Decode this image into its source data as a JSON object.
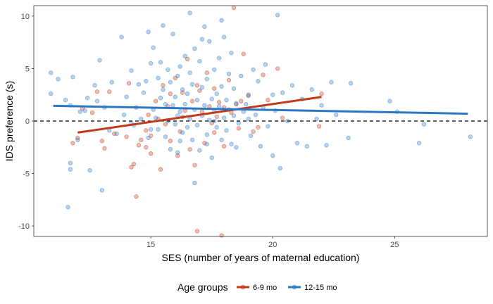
{
  "chart_data": {
    "type": "scatter",
    "title": "",
    "xlabel": "SES (number of years of maternal education)",
    "ylabel": "IDS preference (s)",
    "xlim": [
      10.2,
      28.8
    ],
    "ylim": [
      -11,
      11
    ],
    "x_ticks": [
      15,
      20,
      25
    ],
    "y_ticks": [
      -10,
      -5,
      0,
      5,
      10
    ],
    "x_tick_labels": [
      "15",
      "20",
      "25"
    ],
    "y_tick_labels": [
      "-10",
      "-5",
      "0",
      "5",
      "10"
    ],
    "grid": false,
    "reference_line": {
      "y": 0,
      "style": "dashed",
      "color": "#000000"
    },
    "legend": {
      "title": "Age groups",
      "placement": "bottom"
    },
    "series": [
      {
        "name": "6-9 mo",
        "color": "#c0391b",
        "regression_line": [
          [
            12.0,
            -1.1
          ],
          [
            22.0,
            2.3
          ]
        ],
        "points": [
          [
            11.8,
            -2.1
          ],
          [
            12.0,
            -1.6
          ],
          [
            12.2,
            1.2
          ],
          [
            12.6,
            0.8
          ],
          [
            13.0,
            -1.9
          ],
          [
            13.1,
            -2.6
          ],
          [
            13.3,
            2.8
          ],
          [
            13.5,
            -1.2
          ],
          [
            14.0,
            -1.5
          ],
          [
            14.1,
            3.6
          ],
          [
            14.2,
            -4.4
          ],
          [
            14.3,
            -4.1
          ],
          [
            14.4,
            -7.2
          ],
          [
            14.6,
            -1.8
          ],
          [
            14.8,
            -2.5
          ],
          [
            14.8,
            -0.9
          ],
          [
            15.0,
            -3.1
          ],
          [
            15.0,
            -1.4
          ],
          [
            15.2,
            1.9
          ],
          [
            15.4,
            -4.6
          ],
          [
            15.5,
            3.4
          ],
          [
            15.6,
            -0.3
          ],
          [
            15.7,
            1.4
          ],
          [
            15.8,
            2.6
          ],
          [
            15.8,
            -1.9
          ],
          [
            16.0,
            4.1
          ],
          [
            16.1,
            -3.3
          ],
          [
            16.2,
            -1.0
          ],
          [
            16.3,
            2.7
          ],
          [
            16.3,
            0.4
          ],
          [
            16.5,
            5.9
          ],
          [
            16.6,
            -2.7
          ],
          [
            16.7,
            1.9
          ],
          [
            16.8,
            -4.2
          ],
          [
            16.9,
            -10.5
          ],
          [
            17.0,
            2.9
          ],
          [
            17.1,
            0.9
          ],
          [
            17.2,
            -2.1
          ],
          [
            17.3,
            4.6
          ],
          [
            17.4,
            1.4
          ],
          [
            17.6,
            -1.1
          ],
          [
            17.6,
            3.1
          ],
          [
            17.7,
            0.4
          ],
          [
            17.8,
            1.8
          ],
          [
            17.9,
            -10.9
          ],
          [
            18.0,
            -2.4
          ],
          [
            18.0,
            1.3
          ],
          [
            18.2,
            3.9
          ],
          [
            18.3,
            0.8
          ],
          [
            18.4,
            10.8
          ],
          [
            18.5,
            1.6
          ],
          [
            18.6,
            -0.7
          ],
          [
            18.8,
            6.4
          ],
          [
            19.0,
            2.5
          ],
          [
            19.2,
            -1.0
          ],
          [
            19.6,
            4.4
          ],
          [
            19.8,
            2.0
          ],
          [
            20.2,
            5.0
          ],
          [
            20.4,
            0.3
          ],
          [
            21.9,
            -0.5
          ],
          [
            22.0,
            2.6
          ],
          [
            12.8,
            2.8
          ],
          [
            14.9,
            0.6
          ],
          [
            16.4,
            1.0
          ],
          [
            17.5,
            -0.2
          ],
          [
            18.7,
            1.9
          ],
          [
            16.9,
            3.4
          ],
          [
            15.3,
            0.2
          ],
          [
            19.4,
            -0.6
          ],
          [
            14.5,
            -2.3
          ]
        ]
      },
      {
        "name": "12-15 mo",
        "color": "#2a78c4",
        "regression_line": [
          [
            11.0,
            1.45
          ],
          [
            28.0,
            0.7
          ]
        ],
        "points": [
          [
            10.9,
            2.6
          ],
          [
            10.9,
            4.6
          ],
          [
            11.2,
            4.0
          ],
          [
            11.5,
            2.0
          ],
          [
            11.6,
            -8.2
          ],
          [
            11.7,
            -4.0
          ],
          [
            11.7,
            -4.6
          ],
          [
            11.8,
            4.2
          ],
          [
            12.0,
            -1.8
          ],
          [
            12.3,
            1.0
          ],
          [
            12.4,
            2.2
          ],
          [
            12.5,
            -4.7
          ],
          [
            12.7,
            3.4
          ],
          [
            12.8,
            1.9
          ],
          [
            12.9,
            5.8
          ],
          [
            13.0,
            -6.6
          ],
          [
            13.1,
            1.3
          ],
          [
            13.4,
            3.7
          ],
          [
            13.6,
            -1.2
          ],
          [
            13.8,
            8.0
          ],
          [
            14.0,
            2.3
          ],
          [
            14.2,
            4.8
          ],
          [
            14.3,
            -0.4
          ],
          [
            14.4,
            1.3
          ],
          [
            14.6,
            0.2
          ],
          [
            14.7,
            2.7
          ],
          [
            14.8,
            3.8
          ],
          [
            14.9,
            -1.6
          ],
          [
            14.9,
            8.5
          ],
          [
            15.0,
            5.5
          ],
          [
            15.1,
            7.0
          ],
          [
            15.1,
            1.1
          ],
          [
            15.2,
            0.3
          ],
          [
            15.3,
            4.1
          ],
          [
            15.3,
            -0.8
          ],
          [
            15.4,
            2.2
          ],
          [
            15.5,
            9.1
          ],
          [
            15.5,
            3.0
          ],
          [
            15.6,
            -1.5
          ],
          [
            15.6,
            1.6
          ],
          [
            15.7,
            4.9
          ],
          [
            15.7,
            0.0
          ],
          [
            15.8,
            -2.7
          ],
          [
            15.8,
            3.7
          ],
          [
            15.9,
            8.3
          ],
          [
            15.9,
            1.5
          ],
          [
            16.0,
            -0.3
          ],
          [
            16.0,
            2.3
          ],
          [
            16.1,
            4.3
          ],
          [
            16.1,
            -3.0
          ],
          [
            16.2,
            0.9
          ],
          [
            16.2,
            5.2
          ],
          [
            16.3,
            3.0
          ],
          [
            16.3,
            -1.1
          ],
          [
            16.4,
            1.6
          ],
          [
            16.4,
            6.2
          ],
          [
            16.5,
            -0.6
          ],
          [
            16.5,
            2.6
          ],
          [
            16.6,
            4.6
          ],
          [
            16.6,
            0.2
          ],
          [
            16.7,
            -1.8
          ],
          [
            16.7,
            3.5
          ],
          [
            16.8,
            6.9
          ],
          [
            16.8,
            1.1
          ],
          [
            16.9,
            -0.4
          ],
          [
            16.9,
            2.0
          ],
          [
            17.0,
            5.7
          ],
          [
            17.0,
            -2.8
          ],
          [
            17.1,
            0.5
          ],
          [
            17.1,
            3.2
          ],
          [
            17.2,
            9.0
          ],
          [
            17.2,
            1.5
          ],
          [
            17.3,
            -1.3
          ],
          [
            17.3,
            4.0
          ],
          [
            17.4,
            0.1
          ],
          [
            17.4,
            7.6
          ],
          [
            17.5,
            2.1
          ],
          [
            17.5,
            -3.5
          ],
          [
            17.6,
            0.9
          ],
          [
            17.6,
            4.9
          ],
          [
            17.7,
            -0.6
          ],
          [
            17.7,
            2.6
          ],
          [
            17.8,
            6.0
          ],
          [
            17.8,
            1.4
          ],
          [
            17.9,
            -1.8
          ],
          [
            17.9,
            3.3
          ],
          [
            18.0,
            0.3
          ],
          [
            18.0,
            8.0
          ],
          [
            18.1,
            2.0
          ],
          [
            18.1,
            -0.9
          ],
          [
            18.2,
            4.5
          ],
          [
            18.2,
            1.1
          ],
          [
            18.3,
            -2.2
          ],
          [
            18.3,
            6.5
          ],
          [
            18.4,
            0.5
          ],
          [
            18.4,
            3.1
          ],
          [
            18.5,
            1.7
          ],
          [
            18.6,
            -0.2
          ],
          [
            18.7,
            4.3
          ],
          [
            18.8,
            0.9
          ],
          [
            19.0,
            2.4
          ],
          [
            19.1,
            -1.4
          ],
          [
            19.2,
            4.9
          ],
          [
            19.3,
            0.6
          ],
          [
            19.4,
            3.8
          ],
          [
            19.5,
            -2.4
          ],
          [
            19.6,
            1.3
          ],
          [
            19.7,
            5.4
          ],
          [
            19.8,
            -0.5
          ],
          [
            20.0,
            2.5
          ],
          [
            20.0,
            -3.3
          ],
          [
            20.1,
            1.0
          ],
          [
            20.2,
            10.1
          ],
          [
            20.3,
            -4.5
          ],
          [
            20.4,
            2.7
          ],
          [
            20.6,
            0.0
          ],
          [
            20.8,
            3.4
          ],
          [
            21.0,
            -2.1
          ],
          [
            21.2,
            2.1
          ],
          [
            21.4,
            -2.4
          ],
          [
            21.6,
            3.0
          ],
          [
            21.8,
            0.2
          ],
          [
            22.0,
            1.5
          ],
          [
            22.2,
            -2.3
          ],
          [
            22.4,
            3.7
          ],
          [
            22.6,
            0.6
          ],
          [
            23.1,
            -1.6
          ],
          [
            23.2,
            3.6
          ],
          [
            24.8,
            1.9
          ],
          [
            25.1,
            0.9
          ],
          [
            26.0,
            -2.1
          ],
          [
            26.2,
            -0.3
          ],
          [
            28.1,
            -1.5
          ],
          [
            17.9,
            9.6
          ],
          [
            16.6,
            10.3
          ],
          [
            17.1,
            7.8
          ],
          [
            14.5,
            3.5
          ],
          [
            13.9,
            0.6
          ],
          [
            15.4,
            5.6
          ],
          [
            16.2,
            -1.9
          ],
          [
            17.6,
            0.0
          ],
          [
            18.5,
            -2.5
          ],
          [
            19.0,
            0.2
          ],
          [
            16.8,
            -5.9
          ],
          [
            16.1,
            0.5
          ],
          [
            15.0,
            -0.8
          ],
          [
            14.2,
            -0.2
          ],
          [
            13.3,
            -0.9
          ],
          [
            12.1,
            0.9
          ],
          [
            11.7,
            1.5
          ],
          [
            17.3,
            -2.2
          ],
          [
            18.9,
            1.6
          ]
        ]
      }
    ]
  }
}
